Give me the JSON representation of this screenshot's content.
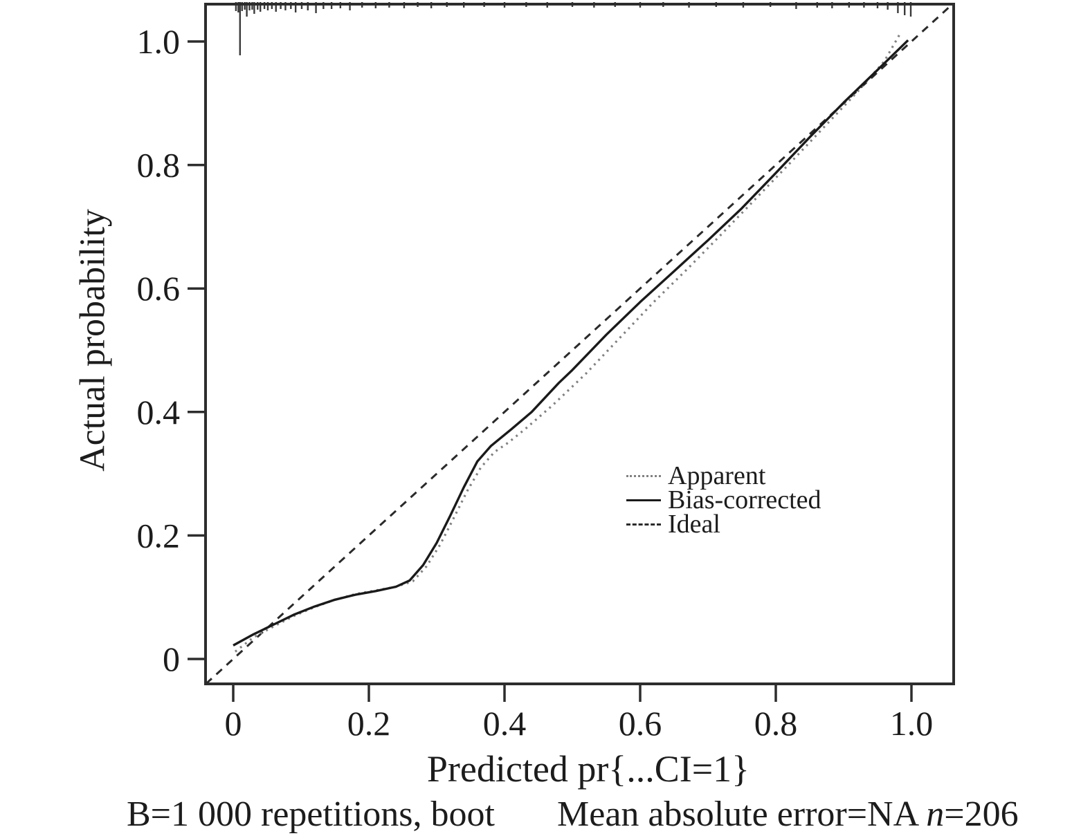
{
  "chart_data": {
    "type": "line",
    "title": "",
    "xlabel": "Predicted pr{...CI=1}",
    "ylabel": "Actual probability",
    "xlim": [
      -0.04,
      1.06
    ],
    "ylim": [
      -0.04,
      1.06
    ],
    "grid": false,
    "legend_position": "right-center-inside",
    "x_ticks": {
      "values": [
        0,
        0.2,
        0.4,
        0.6,
        0.8,
        1.0
      ],
      "labels": [
        "0",
        "0.2",
        "0.4",
        "0.6",
        "0.8",
        "1.0"
      ]
    },
    "y_ticks": {
      "values": [
        0,
        0.2,
        0.4,
        0.6,
        0.8,
        1.0
      ],
      "labels": [
        "0",
        "0.2",
        "0.4",
        "0.6",
        "0.8",
        "1.0"
      ]
    },
    "series": [
      {
        "name": "Apparent",
        "style": "dotted",
        "color": "#818181",
        "points": [
          [
            0.003,
            0.012
          ],
          [
            0.03,
            0.035
          ],
          [
            0.06,
            0.053
          ],
          [
            0.09,
            0.07
          ],
          [
            0.12,
            0.084
          ],
          [
            0.15,
            0.096
          ],
          [
            0.18,
            0.105
          ],
          [
            0.21,
            0.111
          ],
          [
            0.24,
            0.117
          ],
          [
            0.265,
            0.126
          ],
          [
            0.285,
            0.15
          ],
          [
            0.305,
            0.185
          ],
          [
            0.325,
            0.228
          ],
          [
            0.345,
            0.272
          ],
          [
            0.365,
            0.31
          ],
          [
            0.385,
            0.335
          ],
          [
            0.405,
            0.35
          ],
          [
            0.43,
            0.372
          ],
          [
            0.47,
            0.41
          ],
          [
            0.52,
            0.462
          ],
          [
            0.57,
            0.52
          ],
          [
            0.62,
            0.578
          ],
          [
            0.67,
            0.632
          ],
          [
            0.72,
            0.688
          ],
          [
            0.77,
            0.745
          ],
          [
            0.82,
            0.802
          ],
          [
            0.87,
            0.86
          ],
          [
            0.92,
            0.918
          ],
          [
            0.96,
            0.968
          ],
          [
            0.985,
            1.016
          ]
        ]
      },
      {
        "name": "Bias-corrected",
        "style": "solid",
        "color": "#1a1a1a",
        "points": [
          [
            0.0,
            0.022
          ],
          [
            0.03,
            0.04
          ],
          [
            0.06,
            0.056
          ],
          [
            0.09,
            0.072
          ],
          [
            0.12,
            0.085
          ],
          [
            0.15,
            0.096
          ],
          [
            0.18,
            0.104
          ],
          [
            0.21,
            0.11
          ],
          [
            0.24,
            0.117
          ],
          [
            0.26,
            0.127
          ],
          [
            0.28,
            0.152
          ],
          [
            0.3,
            0.188
          ],
          [
            0.32,
            0.232
          ],
          [
            0.34,
            0.278
          ],
          [
            0.36,
            0.32
          ],
          [
            0.38,
            0.345
          ],
          [
            0.41,
            0.372
          ],
          [
            0.44,
            0.4
          ],
          [
            0.48,
            0.447
          ],
          [
            0.5,
            0.468
          ],
          [
            0.55,
            0.525
          ],
          [
            0.6,
            0.578
          ],
          [
            0.65,
            0.628
          ],
          [
            0.7,
            0.678
          ],
          [
            0.75,
            0.73
          ],
          [
            0.8,
            0.787
          ],
          [
            0.85,
            0.845
          ],
          [
            0.9,
            0.901
          ],
          [
            0.95,
            0.954
          ],
          [
            0.995,
            1.002
          ]
        ]
      },
      {
        "name": "Ideal",
        "style": "dashed",
        "color": "#2a2a2a",
        "points": [
          [
            -0.04,
            -0.04
          ],
          [
            1.058,
            1.058
          ]
        ]
      }
    ],
    "rug_marks": [
      [
        0.004,
        10
      ],
      [
        0.0075,
        12
      ],
      [
        0.01,
        74
      ],
      [
        0.013,
        10
      ],
      [
        0.017,
        8
      ],
      [
        0.02,
        18
      ],
      [
        0.024,
        9
      ],
      [
        0.028,
        8
      ],
      [
        0.031,
        14
      ],
      [
        0.036,
        8
      ],
      [
        0.04,
        11
      ],
      [
        0.046,
        7
      ],
      [
        0.051,
        9
      ],
      [
        0.057,
        7
      ],
      [
        0.063,
        11
      ],
      [
        0.07,
        7
      ],
      [
        0.077,
        9
      ],
      [
        0.085,
        7
      ],
      [
        0.092,
        12
      ],
      [
        0.101,
        7
      ],
      [
        0.11,
        9
      ],
      [
        0.122,
        13
      ],
      [
        0.133,
        7
      ],
      [
        0.145,
        7
      ],
      [
        0.158,
        6
      ],
      [
        0.172,
        9
      ],
      [
        0.19,
        5
      ],
      [
        0.21,
        6
      ],
      [
        0.23,
        5
      ],
      [
        0.252,
        6
      ],
      [
        0.272,
        4
      ],
      [
        0.292,
        6
      ],
      [
        0.315,
        4
      ],
      [
        0.34,
        5
      ],
      [
        0.37,
        4
      ],
      [
        0.4,
        5
      ],
      [
        0.432,
        4
      ],
      [
        0.463,
        5
      ],
      [
        0.5,
        4
      ],
      [
        0.532,
        5
      ],
      [
        0.563,
        4
      ],
      [
        0.6,
        5
      ],
      [
        0.634,
        4
      ],
      [
        0.672,
        5
      ],
      [
        0.712,
        4
      ],
      [
        0.752,
        5
      ],
      [
        0.792,
        4
      ],
      [
        0.83,
        7
      ],
      [
        0.861,
        5
      ],
      [
        0.883,
        6
      ],
      [
        0.908,
        5
      ],
      [
        0.93,
        5
      ],
      [
        0.95,
        6
      ],
      [
        0.965,
        8
      ],
      [
        0.98,
        13
      ],
      [
        0.99,
        16
      ],
      [
        0.999,
        18
      ]
    ],
    "footer_left": "B=1 000 repetitions, boot",
    "footer_right": {
      "prefix": "Mean absolute error=NA ",
      "n": "n",
      "suffix": "=206"
    },
    "n": 206,
    "repetitions": "1 000",
    "mean_absolute_error": "NA"
  },
  "colors": {
    "axis": "#2d2d2d",
    "text": "#1c1c1c",
    "background": "#ffffff"
  }
}
